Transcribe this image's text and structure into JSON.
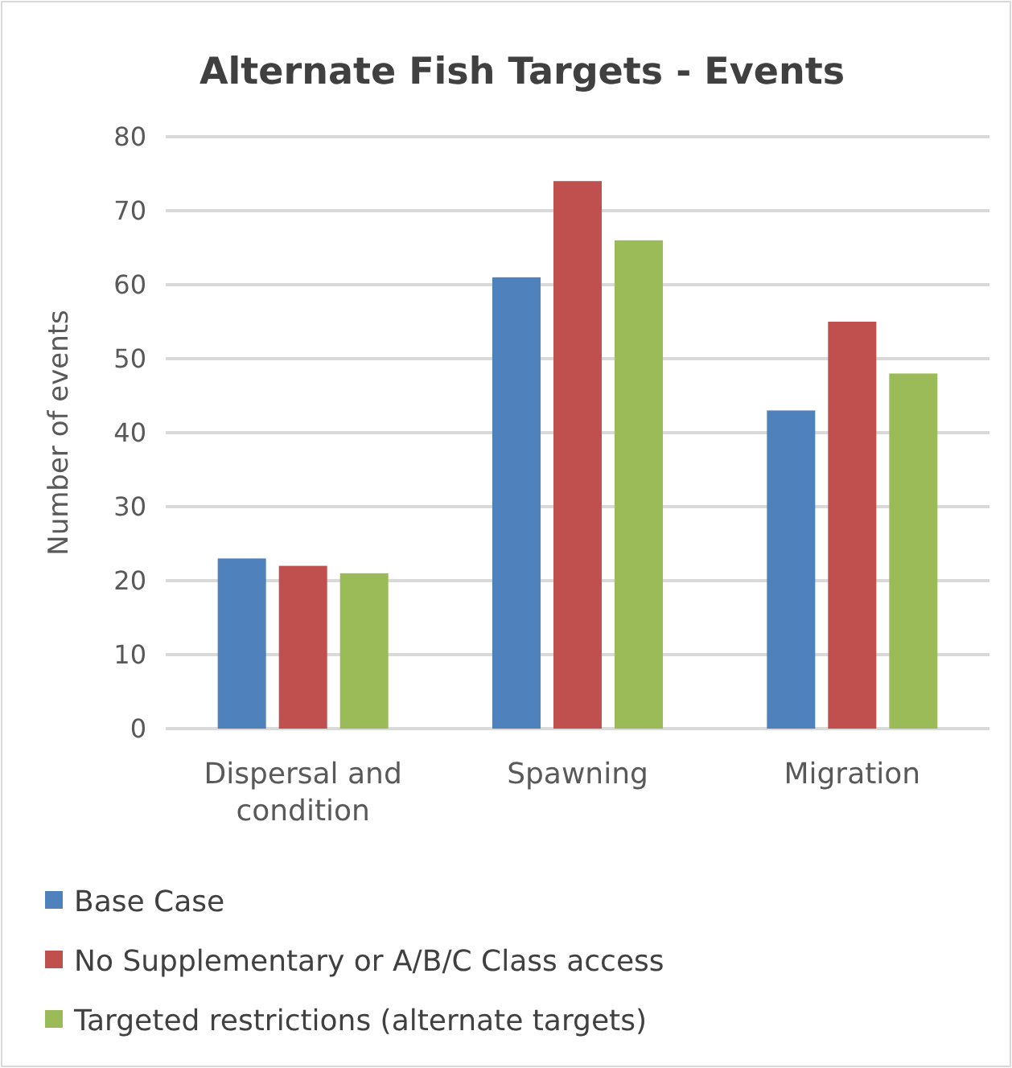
{
  "chart_data": {
    "type": "bar",
    "title": "Alternate Fish Targets - Events",
    "ylabel": "Number of events",
    "categories": [
      "Dispersal and condition",
      "Spawning",
      "Migration"
    ],
    "series": [
      {
        "name": "Base Case",
        "color": "#4f81bd",
        "values": [
          23,
          61,
          43
        ]
      },
      {
        "name": "No Supplementary or A/B/C Class access",
        "color": "#c0504d",
        "values": [
          22,
          74,
          55
        ]
      },
      {
        "name": "Targeted restrictions (alternate targets)",
        "color": "#9bbb59",
        "values": [
          21,
          66,
          48
        ]
      }
    ],
    "ylim": [
      0,
      80
    ],
    "yticks": [
      0,
      10,
      20,
      30,
      40,
      50,
      60,
      70,
      80
    ],
    "grid": "y",
    "legend": "bottom"
  }
}
